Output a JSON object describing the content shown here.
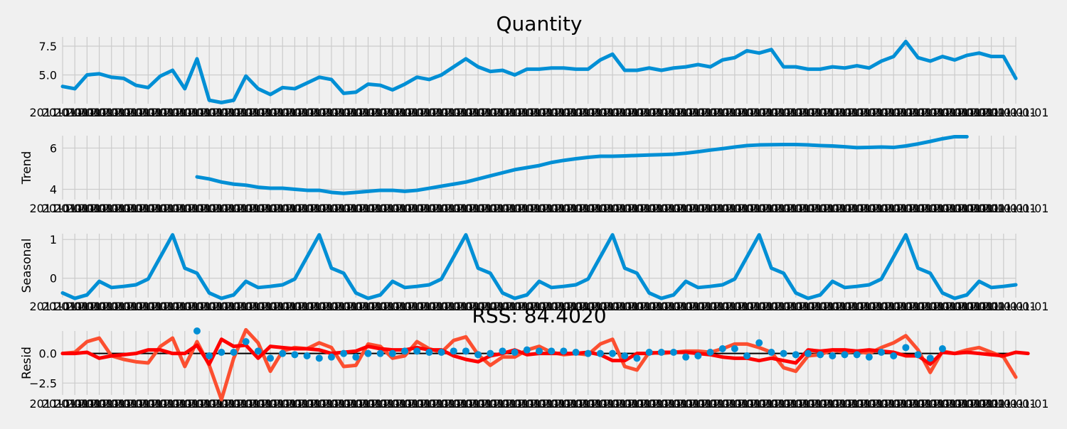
{
  "figure": {
    "background": "#f0f0f0",
    "grid_color": "#cbcbcb",
    "series_color": "#008fd5",
    "residual_marker_color": "#008fd5",
    "fit_color_1": "#fc4f30",
    "fit_color_2": "#ff0000",
    "zero_line_color": "#000000"
  },
  "chart_data": [
    {
      "type": "line",
      "title": "Quantity",
      "ylabel": "",
      "ylim": [
        2.5,
        8.3
      ],
      "yticks": [
        "5.0",
        "7.5"
      ],
      "grid": true,
      "x_tick_label": "2011-01-01",
      "values": [
        4.0,
        3.8,
        5.0,
        5.1,
        4.8,
        4.7,
        4.1,
        3.9,
        4.9,
        5.4,
        3.8,
        6.4,
        2.8,
        2.6,
        2.8,
        4.9,
        3.8,
        3.3,
        3.9,
        3.8,
        4.3,
        4.8,
        4.6,
        3.4,
        3.5,
        4.2,
        4.1,
        3.7,
        4.2,
        4.8,
        4.6,
        5.0,
        5.7,
        6.4,
        5.7,
        5.3,
        5.4,
        5.0,
        5.5,
        5.5,
        5.6,
        5.6,
        5.5,
        5.5,
        6.3,
        6.8,
        5.4,
        5.4,
        5.6,
        5.4,
        5.6,
        5.7,
        5.9,
        5.7,
        6.3,
        6.5,
        7.1,
        6.9,
        7.2,
        5.7,
        5.7,
        5.5,
        5.5,
        5.7,
        5.6,
        5.8,
        5.6,
        6.2,
        6.6,
        7.9,
        6.5,
        6.2,
        6.6,
        6.3,
        6.7,
        6.9,
        6.6,
        6.6,
        4.7
      ]
    },
    {
      "type": "line",
      "title": "",
      "ylabel": "Trend",
      "ylim": [
        3.5,
        6.6
      ],
      "yticks": [
        "4",
        "6"
      ],
      "grid": true,
      "x_tick_label": "2011-01-01",
      "values": [
        null,
        null,
        null,
        null,
        null,
        null,
        null,
        null,
        null,
        null,
        null,
        4.6,
        4.5,
        4.35,
        4.25,
        4.2,
        4.1,
        4.05,
        4.05,
        4.0,
        3.95,
        3.95,
        3.85,
        3.8,
        3.85,
        3.9,
        3.95,
        3.95,
        3.9,
        3.95,
        4.05,
        4.15,
        4.25,
        4.35,
        4.5,
        4.65,
        4.8,
        4.95,
        5.05,
        5.15,
        5.3,
        5.4,
        5.48,
        5.55,
        5.6,
        5.6,
        5.62,
        5.64,
        5.66,
        5.68,
        5.7,
        5.75,
        5.82,
        5.9,
        5.97,
        6.05,
        6.12,
        6.15,
        6.16,
        6.17,
        6.17,
        6.15,
        6.12,
        6.1,
        6.06,
        6.02,
        6.03,
        6.05,
        6.03,
        6.1,
        6.2,
        6.32,
        6.45,
        6.55,
        6.55
      ]
    },
    {
      "type": "line",
      "title": "",
      "ylabel": "Seasonal",
      "ylim": [
        -0.5,
        1.15
      ],
      "yticks": [
        "0",
        "1"
      ],
      "grid": true,
      "x_tick_label": "2011-01-01",
      "values": [
        -0.38,
        -0.52,
        -0.43,
        -0.08,
        -0.24,
        -0.21,
        -0.17,
        -0.02,
        0.55,
        1.12,
        0.26,
        0.13,
        -0.38,
        -0.52,
        -0.43,
        -0.08,
        -0.24,
        -0.21,
        -0.17,
        -0.02,
        0.55,
        1.12,
        0.26,
        0.13,
        -0.38,
        -0.52,
        -0.43,
        -0.08,
        -0.24,
        -0.21,
        -0.17,
        -0.02,
        0.55,
        1.12,
        0.26,
        0.13,
        -0.38,
        -0.52,
        -0.43,
        -0.08,
        -0.24,
        -0.21,
        -0.17,
        -0.02,
        0.55,
        1.12,
        0.26,
        0.13,
        -0.38,
        -0.52,
        -0.43,
        -0.08,
        -0.24,
        -0.21,
        -0.17,
        -0.02,
        0.55,
        1.12,
        0.26,
        0.13,
        -0.38,
        -0.52,
        -0.43,
        -0.08,
        -0.24,
        -0.21,
        -0.17,
        -0.02,
        0.55,
        1.12,
        0.26,
        0.13,
        -0.38,
        -0.52,
        -0.43,
        -0.08,
        -0.24,
        -0.21,
        -0.17
      ]
    },
    {
      "type": "scatter",
      "title": "RSS: 84.4020",
      "ylabel": "Resid",
      "ylim": [
        -3.5,
        1.9
      ],
      "yticks": [
        "−2.5",
        "0.0"
      ],
      "grid": true,
      "x_tick_label": "2011-01-01",
      "residual_points": [
        null,
        null,
        null,
        null,
        null,
        null,
        null,
        null,
        null,
        null,
        null,
        1.9,
        -0.2,
        0.1,
        0.1,
        1.0,
        0.2,
        -0.4,
        0.0,
        -0.1,
        -0.2,
        -0.4,
        -0.3,
        0.0,
        -0.3,
        0.0,
        0.0,
        0.0,
        0.2,
        0.2,
        0.1,
        0.1,
        0.2,
        0.2,
        -0.1,
        0.0,
        0.2,
        0.1,
        0.3,
        0.2,
        0.2,
        0.2,
        0.1,
        0.0,
        0.0,
        0.0,
        -0.2,
        -0.4,
        0.1,
        0.1,
        0.1,
        -0.3,
        -0.2,
        0.1,
        0.4,
        0.4,
        -0.2,
        0.9,
        0.1,
        0.0,
        -0.1,
        0.0,
        -0.1,
        -0.2,
        -0.1,
        -0.1,
        -0.3,
        0.1,
        -0.2,
        0.5,
        -0.1,
        -0.4,
        0.4
      ],
      "fit_line_1": [
        0.0,
        0.1,
        1.0,
        1.3,
        -0.2,
        -0.5,
        -0.7,
        -0.8,
        0.6,
        1.3,
        -1.1,
        1.0,
        -1.0,
        -3.9,
        -0.4,
        2.0,
        0.9,
        -1.5,
        0.2,
        0.5,
        0.4,
        0.9,
        0.5,
        -1.1,
        -1.0,
        0.8,
        0.6,
        -0.4,
        -0.2,
        1.0,
        0.4,
        0.1,
        1.1,
        1.4,
        -0.1,
        -1.0,
        -0.3,
        -0.3,
        0.3,
        0.6,
        0.1,
        -0.1,
        0.0,
        -0.1,
        0.8,
        1.2,
        -1.1,
        -1.4,
        0.1,
        0.0,
        0.1,
        0.2,
        0.2,
        0.1,
        0.4,
        0.8,
        0.8,
        0.5,
        0.1,
        -1.2,
        -1.5,
        -0.2,
        -0.1,
        0.3,
        0.1,
        0.2,
        0.0,
        0.5,
        0.9,
        1.5,
        0.3,
        -1.6,
        0.2,
        0.0,
        0.3,
        0.5,
        0.1,
        -0.3,
        -2.0
      ],
      "fit_line_2": [
        0.0,
        0.0,
        0.1,
        -0.4,
        -0.2,
        -0.1,
        0.0,
        0.3,
        0.3,
        0.0,
        0.0,
        0.7,
        -0.9,
        1.2,
        0.6,
        0.7,
        -0.4,
        0.6,
        0.5,
        0.4,
        0.4,
        0.3,
        0.0,
        0.1,
        0.2,
        0.6,
        0.4,
        0.3,
        0.3,
        0.5,
        0.3,
        0.3,
        -0.2,
        -0.5,
        -0.7,
        -0.2,
        0.0,
        0.3,
        -0.1,
        0.0,
        0.0,
        0.0,
        0.0,
        0.1,
        -0.1,
        -0.6,
        -0.6,
        0.0,
        0.0,
        0.1,
        0.1,
        0.1,
        0.0,
        -0.1,
        -0.3,
        -0.4,
        -0.4,
        -0.6,
        -0.4,
        -0.6,
        -0.8,
        0.3,
        0.2,
        0.3,
        0.3,
        0.2,
        0.3,
        0.2,
        0.1,
        -0.2,
        -0.2,
        -0.9,
        0.1,
        0.0,
        0.1,
        0.0,
        -0.1,
        -0.2,
        0.1,
        0.0
      ]
    }
  ]
}
